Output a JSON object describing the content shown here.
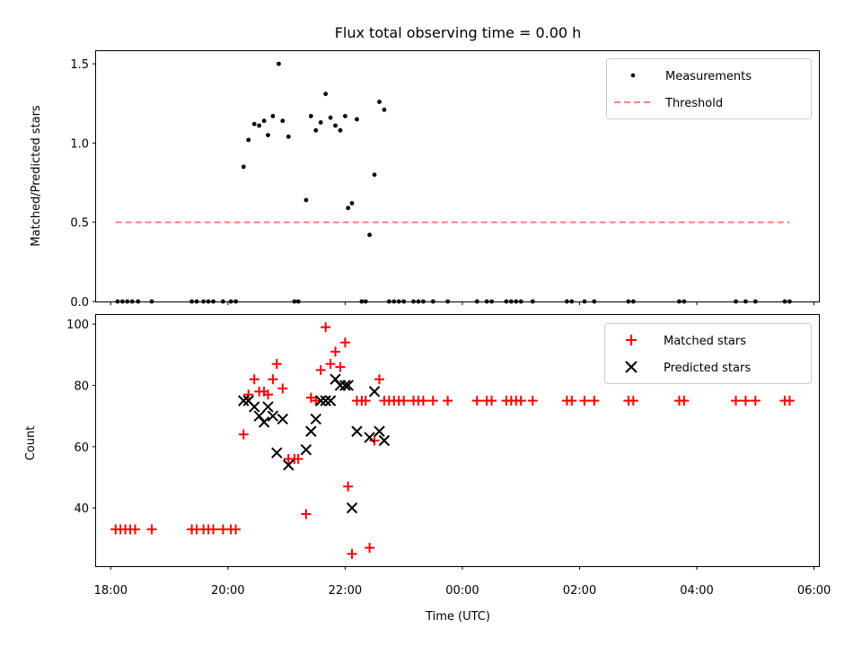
{
  "chart_data": [
    {
      "type": "scatter",
      "title": "Flux total observing time = 0.00 h",
      "xlabel": "",
      "ylabel": "Matched/Predicted stars",
      "xlim": [
        "17:45",
        "06:05"
      ],
      "ylim": [
        0,
        1.58
      ],
      "yticks": [
        0.0,
        0.5,
        1.0,
        1.5
      ],
      "ytick_labels": [
        "0.0",
        "0.5",
        "1.0",
        "1.5"
      ],
      "legend": "top-right",
      "series": [
        {
          "name": "Measurements",
          "marker": "dot",
          "color": "#000000",
          "points": [
            [
              "18:07",
              0
            ],
            [
              "18:12",
              0
            ],
            [
              "18:17",
              0
            ],
            [
              "18:22",
              0
            ],
            [
              "18:28",
              0
            ],
            [
              "18:42",
              0
            ],
            [
              "19:23",
              0
            ],
            [
              "19:28",
              0
            ],
            [
              "19:35",
              0
            ],
            [
              "19:40",
              0
            ],
            [
              "19:45",
              0
            ],
            [
              "19:55",
              0
            ],
            [
              "20:03",
              0
            ],
            [
              "20:08",
              0
            ],
            [
              "20:16",
              0.85
            ],
            [
              "20:21",
              1.02
            ],
            [
              "20:27",
              1.12
            ],
            [
              "20:32",
              1.11
            ],
            [
              "20:37",
              1.14
            ],
            [
              "20:41",
              1.05
            ],
            [
              "20:46",
              1.17
            ],
            [
              "20:52",
              1.5
            ],
            [
              "20:56",
              1.14
            ],
            [
              "21:02",
              1.04
            ],
            [
              "21:08",
              0
            ],
            [
              "21:12",
              0
            ],
            [
              "21:20",
              0.64
            ],
            [
              "21:25",
              1.17
            ],
            [
              "21:30",
              1.08
            ],
            [
              "21:35",
              1.13
            ],
            [
              "21:40",
              1.31
            ],
            [
              "21:45",
              1.16
            ],
            [
              "21:50",
              1.11
            ],
            [
              "21:55",
              1.08
            ],
            [
              "22:00",
              1.17
            ],
            [
              "22:03",
              0.59
            ],
            [
              "22:07",
              0.62
            ],
            [
              "22:12",
              1.15
            ],
            [
              "22:17",
              0
            ],
            [
              "22:21",
              0
            ],
            [
              "22:25",
              0.42
            ],
            [
              "22:30",
              0.8
            ],
            [
              "22:35",
              1.26
            ],
            [
              "22:40",
              1.21
            ],
            [
              "22:45",
              0
            ],
            [
              "22:50",
              0
            ],
            [
              "22:55",
              0
            ],
            [
              "23:00",
              0
            ],
            [
              "23:10",
              0
            ],
            [
              "23:15",
              0
            ],
            [
              "23:20",
              0
            ],
            [
              "23:30",
              0
            ],
            [
              "23:45",
              0
            ],
            [
              "00:15",
              0
            ],
            [
              "00:25",
              0
            ],
            [
              "00:30",
              0
            ],
            [
              "00:45",
              0
            ],
            [
              "00:50",
              0
            ],
            [
              "00:55",
              0
            ],
            [
              "01:00",
              0
            ],
            [
              "01:12",
              0
            ],
            [
              "01:47",
              0
            ],
            [
              "01:52",
              0
            ],
            [
              "02:05",
              0
            ],
            [
              "02:15",
              0
            ],
            [
              "02:50",
              0
            ],
            [
              "02:55",
              0
            ],
            [
              "03:42",
              0
            ],
            [
              "03:47",
              0
            ],
            [
              "04:40",
              0
            ],
            [
              "04:50",
              0
            ],
            [
              "05:00",
              0
            ],
            [
              "05:30",
              0
            ],
            [
              "05:35",
              0
            ]
          ]
        },
        {
          "name": "Threshold",
          "marker": "dashed-line",
          "color": "#ff7f7f",
          "points": [
            [
              "18:05",
              0.5
            ],
            [
              "05:35",
              0.5
            ]
          ]
        }
      ]
    },
    {
      "type": "scatter",
      "title": "",
      "xlabel": "Time (UTC)",
      "ylabel": "Count",
      "xlim": [
        "17:45",
        "06:05"
      ],
      "ylim": [
        21,
        103
      ],
      "yticks": [
        40,
        60,
        80,
        100
      ],
      "ytick_labels": [
        "40",
        "60",
        "80",
        "100"
      ],
      "xticks": [
        "18:00",
        "20:00",
        "22:00",
        "00:00",
        "02:00",
        "04:00",
        "06:00"
      ],
      "legend": "top-right",
      "series": [
        {
          "name": "Matched stars",
          "marker": "plus",
          "color": "#ff0000",
          "points": [
            [
              "18:05",
              33
            ],
            [
              "18:10",
              33
            ],
            [
              "18:15",
              33
            ],
            [
              "18:20",
              33
            ],
            [
              "18:25",
              33
            ],
            [
              "18:42",
              33
            ],
            [
              "19:23",
              33
            ],
            [
              "19:28",
              33
            ],
            [
              "19:35",
              33
            ],
            [
              "19:40",
              33
            ],
            [
              "19:45",
              33
            ],
            [
              "19:55",
              33
            ],
            [
              "20:03",
              33
            ],
            [
              "20:08",
              33
            ],
            [
              "20:16",
              64
            ],
            [
              "20:21",
              77
            ],
            [
              "20:27",
              82
            ],
            [
              "20:32",
              78
            ],
            [
              "20:37",
              78
            ],
            [
              "20:41",
              77
            ],
            [
              "20:46",
              82
            ],
            [
              "20:50",
              87
            ],
            [
              "20:56",
              79
            ],
            [
              "21:02",
              56
            ],
            [
              "21:08",
              56
            ],
            [
              "21:12",
              56
            ],
            [
              "21:20",
              38
            ],
            [
              "21:25",
              76
            ],
            [
              "21:30",
              75
            ],
            [
              "21:35",
              85
            ],
            [
              "21:40",
              99
            ],
            [
              "21:45",
              87
            ],
            [
              "21:50",
              91
            ],
            [
              "21:55",
              86
            ],
            [
              "22:00",
              94
            ],
            [
              "22:03",
              47
            ],
            [
              "22:07",
              25
            ],
            [
              "22:12",
              75
            ],
            [
              "22:17",
              75
            ],
            [
              "22:21",
              75
            ],
            [
              "22:25",
              27
            ],
            [
              "22:30",
              62
            ],
            [
              "22:35",
              82
            ],
            [
              "22:40",
              75
            ],
            [
              "22:45",
              75
            ],
            [
              "22:50",
              75
            ],
            [
              "22:55",
              75
            ],
            [
              "23:00",
              75
            ],
            [
              "23:10",
              75
            ],
            [
              "23:15",
              75
            ],
            [
              "23:20",
              75
            ],
            [
              "23:30",
              75
            ],
            [
              "23:45",
              75
            ],
            [
              "00:15",
              75
            ],
            [
              "00:25",
              75
            ],
            [
              "00:30",
              75
            ],
            [
              "00:45",
              75
            ],
            [
              "00:50",
              75
            ],
            [
              "00:55",
              75
            ],
            [
              "01:00",
              75
            ],
            [
              "01:12",
              75
            ],
            [
              "01:47",
              75
            ],
            [
              "01:52",
              75
            ],
            [
              "02:05",
              75
            ],
            [
              "02:15",
              75
            ],
            [
              "02:50",
              75
            ],
            [
              "02:55",
              75
            ],
            [
              "03:42",
              75
            ],
            [
              "03:47",
              75
            ],
            [
              "04:40",
              75
            ],
            [
              "04:50",
              75
            ],
            [
              "05:00",
              75
            ],
            [
              "05:30",
              75
            ],
            [
              "05:35",
              75
            ]
          ]
        },
        {
          "name": "Predicted stars",
          "marker": "x",
          "color": "#000000",
          "points": [
            [
              "20:16",
              75
            ],
            [
              "20:21",
              75
            ],
            [
              "20:27",
              73
            ],
            [
              "20:32",
              70
            ],
            [
              "20:37",
              68
            ],
            [
              "20:41",
              73
            ],
            [
              "20:46",
              70
            ],
            [
              "20:50",
              58
            ],
            [
              "20:56",
              69
            ],
            [
              "21:02",
              54
            ],
            [
              "21:20",
              59
            ],
            [
              "21:25",
              65
            ],
            [
              "21:30",
              69
            ],
            [
              "21:35",
              75
            ],
            [
              "21:40",
              75
            ],
            [
              "21:45",
              75
            ],
            [
              "21:50",
              82
            ],
            [
              "21:55",
              80
            ],
            [
              "22:00",
              80
            ],
            [
              "22:03",
              80
            ],
            [
              "22:07",
              40
            ],
            [
              "22:12",
              65
            ],
            [
              "22:25",
              63
            ],
            [
              "22:30",
              78
            ],
            [
              "22:35",
              65
            ],
            [
              "22:40",
              62
            ]
          ]
        }
      ]
    }
  ],
  "legends": {
    "top": [
      "Measurements",
      "Threshold"
    ],
    "bottom": [
      "Matched stars",
      "Predicted stars"
    ]
  }
}
